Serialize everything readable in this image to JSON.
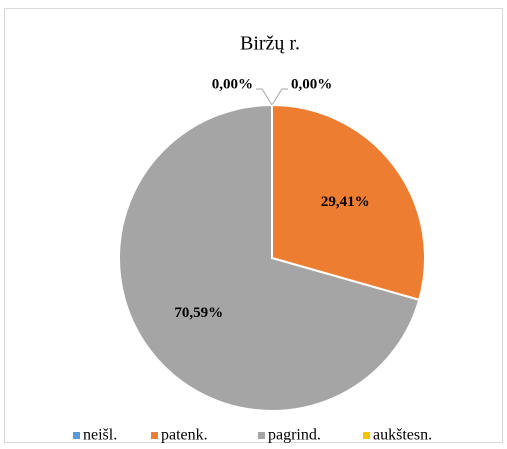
{
  "chart_data": {
    "type": "pie",
    "title": "Biržų r.",
    "categories": [
      "neišl.",
      "patenk.",
      "pagrind.",
      "aukštesn."
    ],
    "values": [
      0,
      29.41,
      70.59,
      0
    ],
    "value_labels": [
      "0,00%",
      "29,41%",
      "70,59%",
      "0,00%"
    ],
    "colors": [
      "#5b9bd5",
      "#ed7d31",
      "#a5a5a5",
      "#ffc000"
    ],
    "legend": "bottom"
  }
}
